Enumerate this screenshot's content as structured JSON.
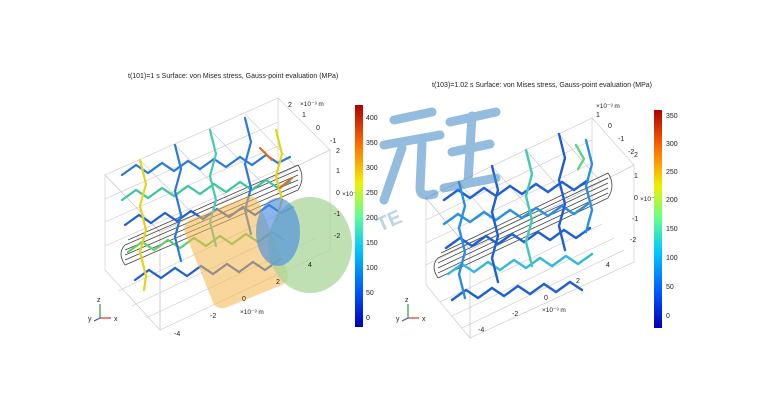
{
  "colors": {
    "watermark": "#3b86c6",
    "stent_low": "#1e5fd8",
    "stent_high": "#e8d21a"
  },
  "panels": [
    {
      "title": "t(101)=1 s   Surface: von Mises stress, Gauss-point evaluation (MPa)",
      "colorbar_ticks": [
        "400",
        "350",
        "300",
        "250",
        "200",
        "150",
        "100",
        "50",
        "0"
      ],
      "y_axis_ticks": [
        "2",
        "1",
        "0",
        "-1"
      ],
      "y_unit": "×10⁻³ m",
      "z_ticks": [
        "2",
        "1",
        "0",
        "-1",
        "-2"
      ],
      "z_unit": "×10⁻³",
      "x_ticks": [
        "-4",
        "-2",
        "0",
        "2",
        "4"
      ],
      "x_unit": "×10⁻³ m",
      "triad": {
        "y": "y",
        "z": "z",
        "x": "x"
      }
    },
    {
      "title": "t(103)=1.02 s   Surface: von Mises stress, Gauss-point evaluation (MPa)",
      "colorbar_ticks": [
        "350",
        "300",
        "250",
        "200",
        "150",
        "100",
        "50",
        "0"
      ],
      "y_axis_ticks": [
        "1",
        "0",
        "-1",
        "-2"
      ],
      "y_unit": "×10⁻³ m",
      "z_ticks": [
        "2",
        "1",
        "0",
        "-1",
        "-2"
      ],
      "z_unit": "×10⁻³",
      "x_ticks": [
        "-4",
        "-2",
        "0",
        "2",
        "4"
      ],
      "x_unit": "×10⁻³ m",
      "triad": {
        "y": "y",
        "z": "z",
        "x": "x"
      }
    }
  ],
  "watermark": {
    "chars": "元王",
    "latin": "TENGWANG"
  }
}
